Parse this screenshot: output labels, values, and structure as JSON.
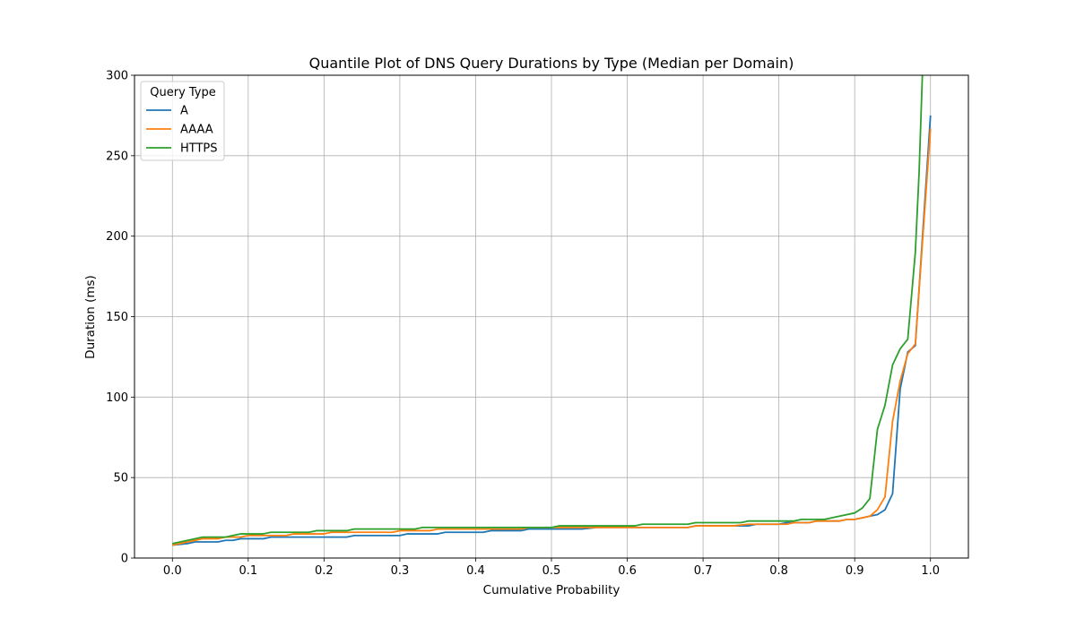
{
  "chart_data": {
    "type": "line",
    "title": "Quantile Plot of DNS Query Durations by Type (Median per Domain)",
    "xlabel": "Cumulative Probability",
    "ylabel": "Duration (ms)",
    "xlim": [
      -0.05,
      1.05
    ],
    "ylim": [
      0,
      300
    ],
    "x_ticks": [
      0.0,
      0.1,
      0.2,
      0.3,
      0.4,
      0.5,
      0.6,
      0.7,
      0.8,
      0.9,
      1.0
    ],
    "x_tick_labels": [
      "0.0",
      "0.1",
      "0.2",
      "0.3",
      "0.4",
      "0.5",
      "0.6",
      "0.7",
      "0.8",
      "0.9",
      "1.0"
    ],
    "y_ticks": [
      0,
      50,
      100,
      150,
      200,
      250,
      300
    ],
    "y_tick_labels": [
      "0",
      "50",
      "100",
      "150",
      "200",
      "250",
      "300"
    ],
    "grid": true,
    "legend": {
      "title": "Query Type",
      "placement": "top-left"
    },
    "series": [
      {
        "name": "A",
        "color": "#1f77b4",
        "points": [
          [
            0.0,
            8
          ],
          [
            0.02,
            9
          ],
          [
            0.03,
            10
          ],
          [
            0.06,
            10
          ],
          [
            0.07,
            11
          ],
          [
            0.08,
            11
          ],
          [
            0.09,
            12
          ],
          [
            0.12,
            12
          ],
          [
            0.13,
            13
          ],
          [
            0.23,
            13
          ],
          [
            0.24,
            14
          ],
          [
            0.3,
            14
          ],
          [
            0.31,
            15
          ],
          [
            0.35,
            15
          ],
          [
            0.36,
            16
          ],
          [
            0.41,
            16
          ],
          [
            0.42,
            17
          ],
          [
            0.46,
            17
          ],
          [
            0.47,
            18
          ],
          [
            0.54,
            18
          ],
          [
            0.56,
            19
          ],
          [
            0.68,
            19
          ],
          [
            0.69,
            20
          ],
          [
            0.76,
            20
          ],
          [
            0.77,
            21
          ],
          [
            0.8,
            21
          ],
          [
            0.81,
            22
          ],
          [
            0.84,
            22
          ],
          [
            0.85,
            23
          ],
          [
            0.88,
            23
          ],
          [
            0.89,
            24
          ],
          [
            0.9,
            24
          ],
          [
            0.91,
            25
          ],
          [
            0.92,
            26
          ],
          [
            0.93,
            27
          ],
          [
            0.94,
            30
          ],
          [
            0.95,
            40
          ],
          [
            0.96,
            105
          ],
          [
            0.97,
            128
          ],
          [
            0.98,
            132
          ],
          [
            1.0,
            275
          ]
        ]
      },
      {
        "name": "AAAA",
        "color": "#ff7f0e",
        "points": [
          [
            0.0,
            8
          ],
          [
            0.02,
            10
          ],
          [
            0.04,
            12
          ],
          [
            0.06,
            12
          ],
          [
            0.07,
            13
          ],
          [
            0.09,
            13
          ],
          [
            0.1,
            14
          ],
          [
            0.15,
            14
          ],
          [
            0.16,
            15
          ],
          [
            0.2,
            15
          ],
          [
            0.21,
            16
          ],
          [
            0.29,
            16
          ],
          [
            0.3,
            17
          ],
          [
            0.34,
            17
          ],
          [
            0.35,
            18
          ],
          [
            0.46,
            18
          ],
          [
            0.47,
            19
          ],
          [
            0.68,
            19
          ],
          [
            0.69,
            20
          ],
          [
            0.74,
            20
          ],
          [
            0.76,
            21
          ],
          [
            0.81,
            21
          ],
          [
            0.82,
            22
          ],
          [
            0.84,
            22
          ],
          [
            0.85,
            23
          ],
          [
            0.88,
            23
          ],
          [
            0.89,
            24
          ],
          [
            0.9,
            24
          ],
          [
            0.91,
            25
          ],
          [
            0.92,
            26
          ],
          [
            0.93,
            30
          ],
          [
            0.94,
            38
          ],
          [
            0.95,
            85
          ],
          [
            0.96,
            110
          ],
          [
            0.97,
            127
          ],
          [
            0.98,
            133
          ],
          [
            1.0,
            267
          ]
        ]
      },
      {
        "name": "HTTPS",
        "color": "#2ca02c",
        "points": [
          [
            0.0,
            9
          ],
          [
            0.02,
            11
          ],
          [
            0.04,
            13
          ],
          [
            0.07,
            13
          ],
          [
            0.09,
            15
          ],
          [
            0.12,
            15
          ],
          [
            0.13,
            16
          ],
          [
            0.18,
            16
          ],
          [
            0.19,
            17
          ],
          [
            0.23,
            17
          ],
          [
            0.24,
            18
          ],
          [
            0.32,
            18
          ],
          [
            0.33,
            19
          ],
          [
            0.5,
            19
          ],
          [
            0.51,
            20
          ],
          [
            0.61,
            20
          ],
          [
            0.62,
            21
          ],
          [
            0.68,
            21
          ],
          [
            0.69,
            22
          ],
          [
            0.75,
            22
          ],
          [
            0.76,
            23
          ],
          [
            0.82,
            23
          ],
          [
            0.83,
            24
          ],
          [
            0.86,
            24
          ],
          [
            0.88,
            26
          ],
          [
            0.9,
            28
          ],
          [
            0.91,
            31
          ],
          [
            0.92,
            37
          ],
          [
            0.93,
            80
          ],
          [
            0.94,
            95
          ],
          [
            0.95,
            120
          ],
          [
            0.96,
            130
          ],
          [
            0.97,
            136
          ],
          [
            0.98,
            190
          ],
          [
            0.985,
            240
          ],
          [
            0.99,
            310
          ]
        ]
      }
    ]
  }
}
